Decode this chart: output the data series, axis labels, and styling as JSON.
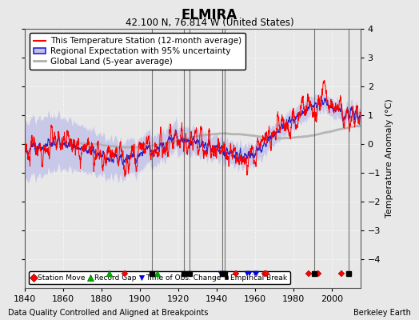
{
  "title": "ELMIRA",
  "subtitle": "42.100 N, 76.814 W (United States)",
  "xlabel_bottom": "Data Quality Controlled and Aligned at Breakpoints",
  "xlabel_right": "Berkeley Earth",
  "ylabel": "Temperature Anomaly (°C)",
  "ylim": [
    -5,
    4
  ],
  "xlim": [
    1840,
    2015
  ],
  "yticks": [
    -4,
    -3,
    -2,
    -1,
    0,
    1,
    2,
    3,
    4
  ],
  "xticks": [
    1840,
    1860,
    1880,
    1900,
    1920,
    1940,
    1960,
    1980,
    2000
  ],
  "bg_color": "#e8e8e8",
  "plot_bg_color": "#e8e8e8",
  "grid_color": "#ffffff",
  "station_color": "#ff0000",
  "regional_color": "#2222cc",
  "regional_fill_color": "#c0c0e8",
  "global_color": "#b0b0b0",
  "station_moves": [
    1892,
    1950,
    1965,
    1966,
    1988,
    1993,
    2005
  ],
  "record_gaps": [
    1884,
    1909
  ],
  "obs_changes": [
    1942,
    1956,
    1957,
    1960,
    1961
  ],
  "emp_breaks": [
    1906,
    1923,
    1926,
    1943,
    1944,
    1991,
    2009
  ],
  "seed": 12345,
  "start_year": 1840,
  "end_year": 2014,
  "legend_fontsize": 7.5,
  "title_fontsize": 12,
  "subtitle_fontsize": 8.5
}
